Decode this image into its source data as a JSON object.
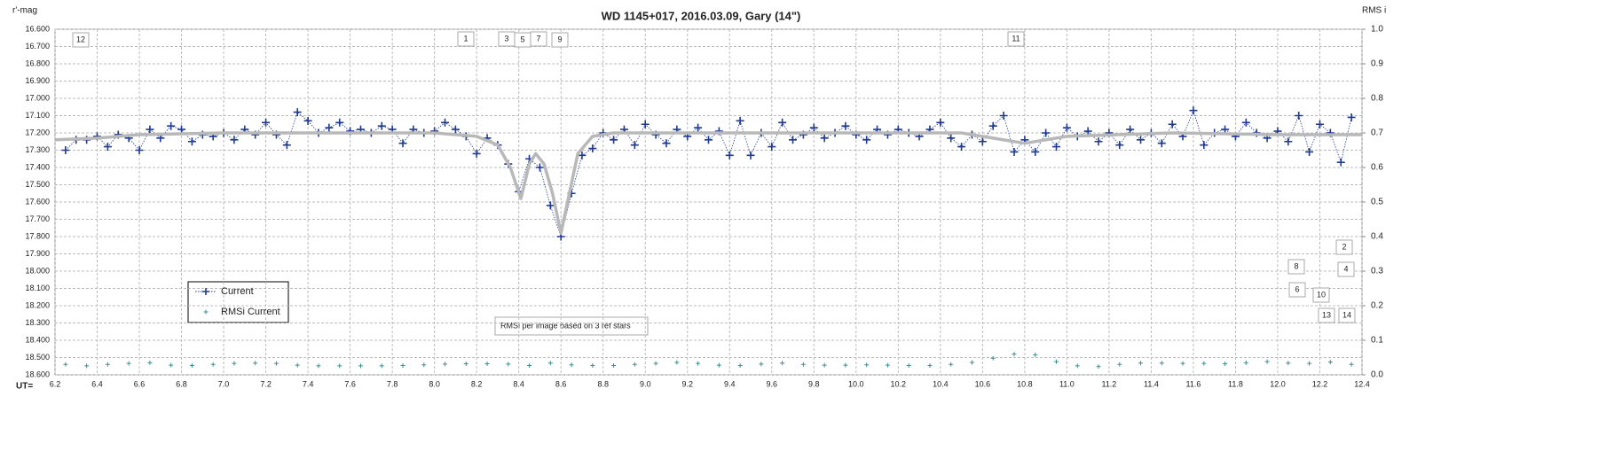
{
  "chart_data": {
    "type": "line",
    "title": "WD 1145+017,  2016.03.09,  Gary (14\")",
    "y_label": "r'-mag",
    "y2_label": "RMS i",
    "x_label": "UT=",
    "note": "RMSi per image based on 3 ref stars",
    "annotations": [
      "12",
      "1",
      "3",
      "5",
      "7",
      "9",
      "11",
      "2",
      "8",
      "4",
      "6",
      "10",
      "13",
      "14"
    ],
    "grid": true,
    "xlim": [
      6.2,
      12.4
    ],
    "xticks": [
      6.2,
      6.4,
      6.6,
      6.8,
      {
        "value": 7.0,
        "label": "7.0"
      },
      7.2,
      7.4,
      7.6,
      7.8,
      {
        "value": 8.0,
        "label": "8.0"
      },
      8.2,
      8.4,
      8.6,
      8.8,
      {
        "value": 9.0,
        "label": "9.0"
      },
      9.2,
      9.4,
      9.6,
      9.8,
      {
        "value": 10.0,
        "label": "10.0"
      },
      10.2,
      10.4,
      10.6,
      10.8,
      {
        "value": 11.0,
        "label": "11.0"
      },
      11.2,
      11.4,
      11.6,
      11.8,
      {
        "value": 12.0,
        "label": "12.0"
      },
      12.2,
      12.4
    ],
    "ylim": [
      16.6,
      18.6
    ],
    "y_reversed": true,
    "yticks": [
      {
        "value": 16.6,
        "label": "16.600"
      },
      {
        "value": 16.7,
        "label": "16.700"
      },
      {
        "value": 16.8,
        "label": "16.800"
      },
      {
        "value": 16.9,
        "label": "16.900"
      },
      {
        "value": 17.0,
        "label": "17.000"
      },
      {
        "value": 17.1,
        "label": "17.100"
      },
      {
        "value": 17.2,
        "label": "17.200"
      },
      {
        "value": 17.3,
        "label": "17.300"
      },
      {
        "value": 17.4,
        "label": "17.400"
      },
      {
        "value": 17.5,
        "label": "17.500"
      },
      {
        "value": 17.6,
        "label": "17.600"
      },
      {
        "value": 17.7,
        "label": "17.700"
      },
      {
        "value": 17.8,
        "label": "17.800"
      },
      {
        "value": 17.9,
        "label": "17.900"
      },
      {
        "value": 18.0,
        "label": "18.000"
      },
      {
        "value": 18.1,
        "label": "18.100"
      },
      {
        "value": 18.2,
        "label": "18.200"
      },
      {
        "value": 18.3,
        "label": "18.300"
      },
      {
        "value": 18.4,
        "label": "18.400"
      },
      {
        "value": 18.5,
        "label": "18.500"
      },
      {
        "value": 18.6,
        "label": "18.600"
      }
    ],
    "y2lim": [
      0,
      1
    ],
    "y2ticks": [
      {
        "value": 0,
        "label": "0.0"
      },
      0.1,
      0.2,
      0.3,
      0.4,
      0.5,
      0.6,
      0.7,
      0.8,
      0.9,
      {
        "value": 1,
        "label": "1.0"
      }
    ],
    "series": [
      {
        "name": "Current",
        "color": "#1f3a93",
        "marker": "plus",
        "x": [
          6.25,
          6.3,
          6.35,
          6.4,
          6.45,
          6.5,
          6.55,
          6.6,
          6.65,
          6.7,
          6.75,
          6.8,
          6.85,
          6.9,
          6.95,
          7.0,
          7.05,
          7.1,
          7.15,
          7.2,
          7.25,
          7.3,
          7.35,
          7.4,
          7.45,
          7.5,
          7.55,
          7.6,
          7.65,
          7.7,
          7.75,
          7.8,
          7.85,
          7.9,
          7.95,
          8.0,
          8.05,
          8.1,
          8.15,
          8.2,
          8.25,
          8.3,
          8.35,
          8.4,
          8.45,
          8.5,
          8.55,
          8.6,
          8.65,
          8.7,
          8.75,
          8.8,
          8.85,
          8.9,
          8.95,
          9.0,
          9.05,
          9.1,
          9.15,
          9.2,
          9.25,
          9.3,
          9.35,
          9.4,
          9.45,
          9.5,
          9.55,
          9.6,
          9.65,
          9.7,
          9.75,
          9.8,
          9.85,
          9.9,
          9.95,
          10.0,
          10.05,
          10.1,
          10.15,
          10.2,
          10.25,
          10.3,
          10.35,
          10.4,
          10.45,
          10.5,
          10.55,
          10.6,
          10.65,
          10.7,
          10.75,
          10.8,
          10.85,
          10.9,
          10.95,
          11.0,
          11.05,
          11.1,
          11.15,
          11.2,
          11.25,
          11.3,
          11.35,
          11.4,
          11.45,
          11.5,
          11.55,
          11.6,
          11.65,
          11.7,
          11.75,
          11.8,
          11.85,
          11.9,
          11.95,
          12.0,
          12.05,
          12.1,
          12.15,
          12.2,
          12.25,
          12.3,
          12.35
        ],
        "values": [
          17.3,
          17.24,
          17.24,
          17.22,
          17.28,
          17.21,
          17.23,
          17.3,
          17.18,
          17.23,
          17.16,
          17.18,
          17.25,
          17.21,
          17.22,
          17.2,
          17.24,
          17.18,
          17.21,
          17.14,
          17.21,
          17.27,
          17.08,
          17.13,
          17.2,
          17.17,
          17.14,
          17.19,
          17.18,
          17.2,
          17.16,
          17.18,
          17.26,
          17.18,
          17.2,
          17.19,
          17.14,
          17.18,
          17.22,
          17.32,
          17.23,
          17.27,
          17.38,
          17.54,
          17.35,
          17.4,
          17.62,
          17.8,
          17.55,
          17.33,
          17.29,
          17.2,
          17.24,
          17.18,
          17.27,
          17.15,
          17.21,
          17.26,
          17.18,
          17.22,
          17.17,
          17.24,
          17.19,
          17.33,
          17.13,
          17.33,
          17.2,
          17.28,
          17.14,
          17.24,
          17.21,
          17.17,
          17.23,
          17.2,
          17.16,
          17.21,
          17.24,
          17.18,
          17.21,
          17.18,
          17.2,
          17.22,
          17.18,
          17.14,
          17.23,
          17.28,
          17.21,
          17.25,
          17.16,
          17.1,
          17.31,
          17.24,
          17.31,
          17.2,
          17.28,
          17.17,
          17.22,
          17.19,
          17.25,
          17.2,
          17.27,
          17.18,
          17.24,
          17.2,
          17.26,
          17.15,
          17.22,
          17.07,
          17.27,
          17.2,
          17.18,
          17.22,
          17.14,
          17.2,
          17.23,
          17.19,
          17.25,
          17.1,
          17.31,
          17.15,
          17.2,
          17.37,
          17.11
        ]
      },
      {
        "name": "RMSi Current",
        "color": "#3f8f8f",
        "marker": "small-plus",
        "axis": "y2",
        "x": [
          6.25,
          6.35,
          6.45,
          6.55,
          6.65,
          6.75,
          6.85,
          6.95,
          7.05,
          7.15,
          7.25,
          7.35,
          7.45,
          7.55,
          7.65,
          7.75,
          7.85,
          7.95,
          8.05,
          8.15,
          8.25,
          8.35,
          8.45,
          8.55,
          8.65,
          8.75,
          8.85,
          8.95,
          9.05,
          9.15,
          9.25,
          9.35,
          9.45,
          9.55,
          9.65,
          9.75,
          9.85,
          9.95,
          10.05,
          10.15,
          10.25,
          10.35,
          10.45,
          10.55,
          10.65,
          10.75,
          10.85,
          10.95,
          11.05,
          11.15,
          11.25,
          11.35,
          11.45,
          11.55,
          11.65,
          11.75,
          11.85,
          11.95,
          12.05,
          12.15,
          12.25,
          12.35
        ],
        "values": [
          0.03,
          0.026,
          0.03,
          0.033,
          0.035,
          0.028,
          0.027,
          0.03,
          0.033,
          0.034,
          0.033,
          0.028,
          0.026,
          0.026,
          0.026,
          0.026,
          0.027,
          0.029,
          0.031,
          0.032,
          0.032,
          0.031,
          0.027,
          0.034,
          0.029,
          0.027,
          0.027,
          0.03,
          0.033,
          0.036,
          0.033,
          0.028,
          0.027,
          0.031,
          0.034,
          0.03,
          0.028,
          0.028,
          0.029,
          0.028,
          0.027,
          0.027,
          0.03,
          0.036,
          0.048,
          0.06,
          0.058,
          0.038,
          0.026,
          0.024,
          0.03,
          0.034,
          0.034,
          0.033,
          0.033,
          0.032,
          0.035,
          0.038,
          0.034,
          0.033,
          0.037,
          0.03
        ]
      },
      {
        "color": "#b8b8b8",
        "marker": "none",
        "x": [
          6.2,
          6.4,
          6.6,
          7.0,
          7.5,
          8.0,
          8.2,
          8.3,
          8.36,
          8.41,
          8.45,
          8.48,
          8.52,
          8.56,
          8.6,
          8.64,
          8.68,
          8.75,
          8.85,
          9.5,
          10.5,
          10.8,
          11.0,
          11.5,
          12.0,
          12.4
        ],
        "values": [
          17.24,
          17.23,
          17.21,
          17.2,
          17.2,
          17.2,
          17.22,
          17.27,
          17.4,
          17.58,
          17.38,
          17.32,
          17.38,
          17.55,
          17.78,
          17.55,
          17.32,
          17.22,
          17.2,
          17.2,
          17.2,
          17.26,
          17.22,
          17.2,
          17.21,
          17.21
        ]
      }
    ]
  }
}
